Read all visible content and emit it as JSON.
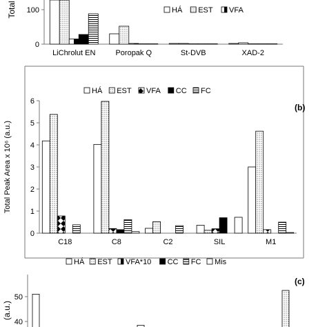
{
  "chart_data": [
    {
      "panel": "a",
      "type": "bar",
      "ylabel": "Total",
      "ylim": [
        0,
        200
      ],
      "yticks": [
        0,
        100
      ],
      "categories": [
        "LiChrolut EN",
        "Poropak Q",
        "St-DVB",
        "XAD-2"
      ],
      "legend": [
        "HÁ",
        "EST",
        "VFA"
      ],
      "series": [
        {
          "name": "HÁ",
          "fill": "empty",
          "values": [
            180,
            30,
            2,
            2
          ]
        },
        {
          "name": "EST",
          "fill": "dots",
          "values": [
            180,
            52,
            2,
            4
          ]
        },
        {
          "name": "VFA",
          "fill": "split",
          "values": [
            15,
            2,
            1,
            1
          ]
        },
        {
          "name": "CC",
          "fill": "black",
          "values": [
            28,
            1,
            1,
            1
          ]
        },
        {
          "name": "FC",
          "fill": "hlines",
          "values": [
            88,
            1,
            1,
            1
          ]
        }
      ]
    },
    {
      "panel": "b",
      "type": "bar",
      "label": "(b)",
      "ylabel": "Total Peak Area x 10⁶ (a.u.)",
      "ylim": [
        0,
        6
      ],
      "yticks": [
        0,
        1,
        2,
        3,
        4,
        5,
        6
      ],
      "categories": [
        "C18",
        "C8",
        "C2",
        "SIL",
        "M1"
      ],
      "legend": [
        "HÁ",
        "EST",
        "VFA",
        "CC",
        "FC"
      ],
      "series": [
        {
          "name": "HÁ",
          "fill": "empty",
          "values": [
            4.18,
            4.02,
            0.22,
            0.36,
            3.0
          ]
        },
        {
          "name": "EST",
          "fill": "dots",
          "values": [
            5.38,
            5.97,
            0.52,
            0.13,
            4.62
          ]
        },
        {
          "name": "VFA",
          "fill": "diamonds",
          "values": [
            0.78,
            0.21,
            0.0,
            0.2,
            0.16
          ]
        },
        {
          "name": "CC",
          "fill": "black",
          "values": [
            0.0,
            0.16,
            0.0,
            0.7,
            0.0
          ]
        },
        {
          "name": "FC",
          "fill": "hlines",
          "values": [
            0.38,
            0.61,
            0.34,
            0.0,
            0.5
          ]
        },
        {
          "name": "Mis",
          "fill": "empty",
          "values": [
            0.0,
            0.07,
            0.0,
            0.72,
            0.03
          ]
        }
      ]
    },
    {
      "panel": "c",
      "type": "bar",
      "label": "(c)",
      "ylabel": "(a.u.)",
      "ylim": [
        35,
        55
      ],
      "yticks": [
        40,
        50
      ],
      "legend": [
        "HÁ",
        "EST",
        "VFA*10",
        "CC",
        "FC",
        "Mis"
      ],
      "visible_bars": [
        {
          "name": "HÁ",
          "value": 51,
          "position": "left"
        },
        {
          "name": "HÁ",
          "value": 38.5,
          "position": "middle"
        },
        {
          "name": "EST",
          "value": 52.5,
          "position": "right"
        }
      ]
    }
  ]
}
